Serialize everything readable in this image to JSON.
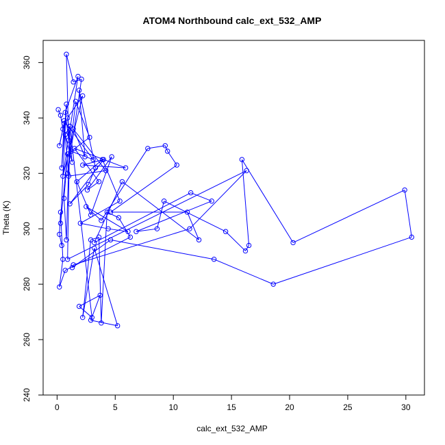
{
  "chart_data": {
    "type": "line",
    "title": "ATOM4 Northbound calc_ext_532_AMP",
    "xlabel": "calc_ext_532_AMP",
    "ylabel": "Theta (K)",
    "xlim": [
      -1.2,
      31.6
    ],
    "ylim": [
      240,
      368
    ],
    "x_ticks": [
      0,
      5,
      10,
      15,
      20,
      25,
      30
    ],
    "y_ticks": [
      240,
      260,
      280,
      300,
      320,
      340,
      360
    ],
    "x_tick_labels": [
      "0",
      "5",
      "10",
      "15",
      "20",
      "25",
      "30"
    ],
    "y_tick_labels": [
      "240",
      "260",
      "280",
      "300",
      "320",
      "340",
      "360"
    ],
    "grid": false,
    "legend": "none",
    "series": [
      {
        "color": "#0000ff",
        "marker": "open-circle",
        "x": [
          0.1,
          0.3,
          0.5,
          0.2,
          0.6,
          0.4,
          0.8,
          0.3,
          0.9,
          0.6,
          0.8,
          1.1,
          0.7,
          1.3,
          0.9,
          2.2,
          0.5,
          1.8,
          0.7,
          1.0,
          0.8,
          1.4,
          2.1,
          0.9,
          1.6,
          2.8,
          1.2,
          3.1,
          0.6,
          1.0,
          4.2,
          1.4,
          2.4,
          1.9,
          3.3,
          2.7,
          1.1,
          4.0,
          2.2,
          5.9,
          1.5,
          3.6,
          2.6,
          4.7,
          2.9,
          1.7,
          3.9,
          5.4,
          2.0,
          4.4,
          6.1,
          2.5,
          3.8,
          7.8,
          9.3,
          9.5,
          10.3,
          4.6,
          11.2,
          12.2,
          5.6,
          3.2,
          11.5,
          13.3,
          6.8,
          8.6,
          9.2,
          14.5,
          16.2,
          16.5,
          15.9,
          20.3,
          29.9,
          30.5,
          18.6,
          13.5,
          4.6,
          1.3,
          1.4,
          11.4,
          16.3,
          0.9,
          1.1,
          3.0,
          1.9,
          3.7,
          2.9,
          5.2,
          3.2,
          2.2,
          2.9,
          3.6,
          3.8,
          4.3,
          5.3,
          6.3,
          0.7,
          0.2,
          0.5,
          0.3,
          0.2,
          0.4
        ],
        "y": [
          343,
          341,
          336,
          330,
          338,
          322,
          345,
          302,
          327,
          311,
          296,
          337,
          334,
          324,
          340,
          348,
          319,
          355,
          342,
          332,
          363,
          353,
          354,
          320,
          346,
          333,
          328,
          325,
          339,
          319,
          321,
          336,
          326,
          350,
          322,
          316,
          309,
          325,
          323,
          322,
          329,
          317,
          314,
          326,
          305,
          317,
          325,
          310,
          302,
          300,
          299,
          308,
          303,
          329,
          330,
          328,
          323,
          306,
          306,
          296,
          317,
          295,
          313,
          310,
          299,
          300,
          310,
          299,
          292,
          294,
          325,
          295,
          314,
          297,
          280,
          289,
          296,
          286,
          287,
          300,
          321,
          289,
          337,
          268,
          272,
          276,
          267,
          265,
          293,
          268,
          296,
          297,
          266,
          306,
          304,
          297,
          285,
          279,
          289,
          306,
          298,
          294
        ]
      }
    ]
  }
}
